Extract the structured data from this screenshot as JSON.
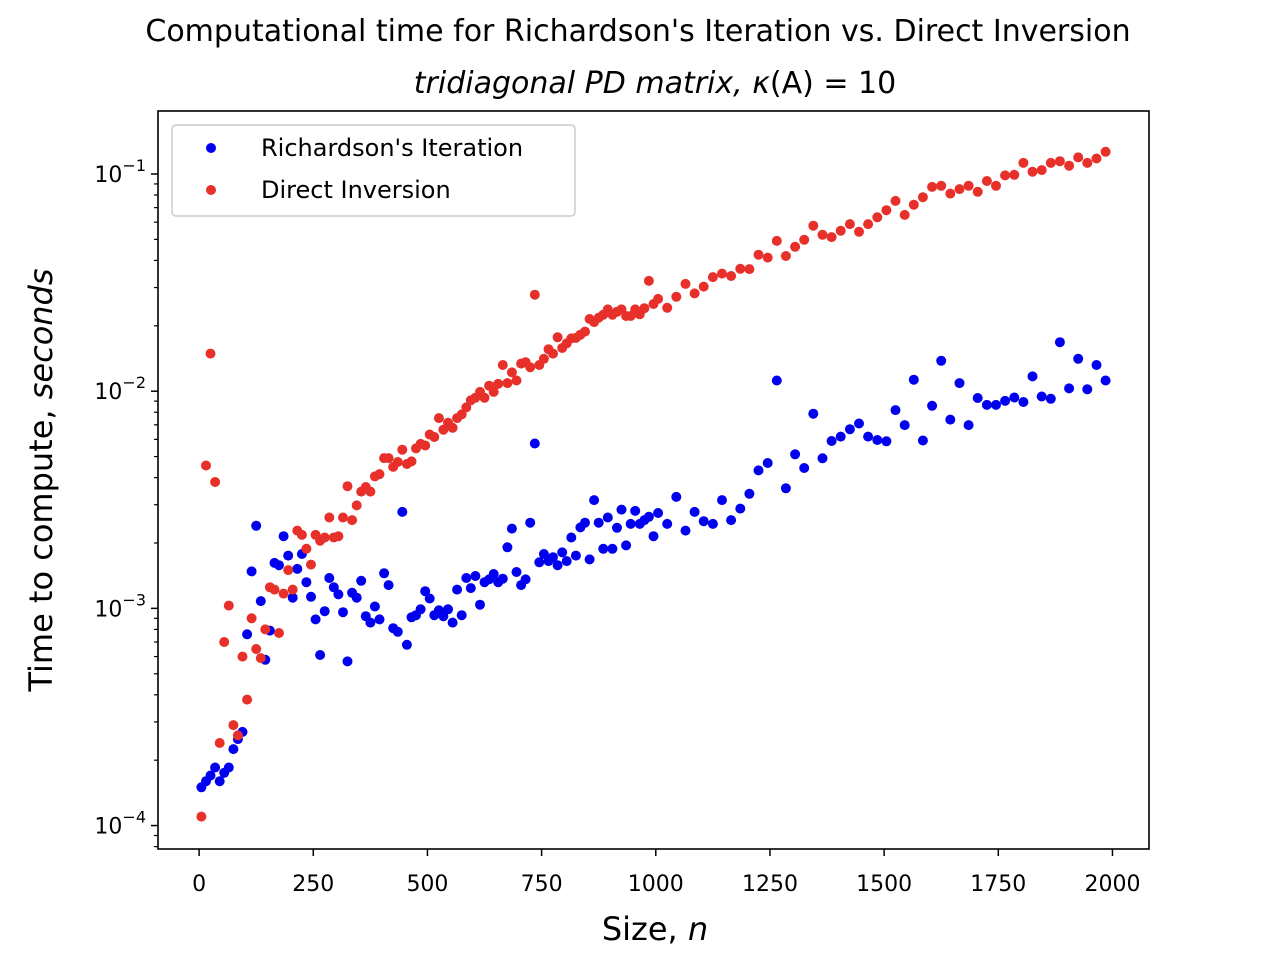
{
  "chart_data": {
    "type": "scatter",
    "title": "Computational time for Richardson's Iteration vs. Direct Inversion",
    "subtitle": "tridiagonal PD matrix, κ(A) = 10",
    "subtitle_parts": {
      "italic": "tridiagonal PD matrix, κ",
      "mid": "(A)",
      "eq": " = 10"
    },
    "xlabel": "Size, n",
    "xlabel_parts": {
      "plain": "Size, ",
      "italic": "n"
    },
    "ylabel": "Time to compute, seconds",
    "ylabel_parts": {
      "plain": "Time to compute, ",
      "italic": "seconds"
    },
    "xlim": [
      -90,
      2080
    ],
    "ylim": [
      7.8e-05,
      0.195
    ],
    "yscale": "log",
    "grid": false,
    "legend_position": "top-left",
    "x_ticks": [
      0,
      250,
      500,
      750,
      1000,
      1250,
      1500,
      1750,
      2000
    ],
    "x_tick_labels": [
      "0",
      "250",
      "500",
      "750",
      "1000",
      "1250",
      "1500",
      "1750",
      "2000"
    ],
    "y_ticks": [
      0.0001,
      0.001,
      0.01,
      0.1
    ],
    "y_tick_labels": [
      {
        "base": "10",
        "exp": "−4"
      },
      {
        "base": "10",
        "exp": "−3"
      },
      {
        "base": "10",
        "exp": "−2"
      },
      {
        "base": "10",
        "exp": "−1"
      }
    ],
    "series": [
      {
        "name": "Richardson's Iteration",
        "color": "#0000ee",
        "x": [
          5,
          15,
          25,
          35,
          45,
          55,
          65,
          75,
          85,
          95,
          105,
          115,
          125,
          135,
          145,
          155,
          165,
          175,
          185,
          195,
          205,
          215,
          225,
          235,
          245,
          255,
          265,
          275,
          285,
          295,
          305,
          315,
          325,
          335,
          345,
          355,
          365,
          375,
          385,
          395,
          405,
          415,
          425,
          435,
          445,
          455,
          465,
          475,
          485,
          495,
          505,
          515,
          525,
          535,
          545,
          555,
          565,
          575,
          585,
          595,
          605,
          615,
          625,
          635,
          645,
          655,
          665,
          675,
          685,
          695,
          705,
          715,
          725,
          735,
          745,
          755,
          765,
          775,
          785,
          795,
          805,
          815,
          825,
          835,
          845,
          855,
          865,
          875,
          885,
          895,
          905,
          915,
          925,
          935,
          945,
          955,
          965,
          975,
          985,
          995,
          1005,
          1025,
          1045,
          1065,
          1085,
          1105,
          1125,
          1145,
          1165,
          1185,
          1205,
          1225,
          1245,
          1265,
          1285,
          1305,
          1325,
          1345,
          1365,
          1385,
          1405,
          1425,
          1445,
          1465,
          1485,
          1505,
          1525,
          1545,
          1565,
          1585,
          1605,
          1625,
          1645,
          1665,
          1685,
          1705,
          1725,
          1745,
          1765,
          1785,
          1805,
          1825,
          1845,
          1865,
          1885,
          1905,
          1925,
          1945,
          1965,
          1985
        ],
        "y": [
          0.00015,
          0.00016,
          0.00017,
          0.000185,
          0.00016,
          0.000175,
          0.000185,
          0.000225,
          0.00025,
          0.00027,
          0.00076,
          0.00148,
          0.0024,
          0.00108,
          0.00058,
          0.00079,
          0.00162,
          0.00158,
          0.00215,
          0.00175,
          0.00112,
          0.00152,
          0.00178,
          0.00132,
          0.00113,
          0.00089,
          0.00061,
          0.00097,
          0.00138,
          0.00125,
          0.00116,
          0.00096,
          0.00057,
          0.00118,
          0.00112,
          0.00134,
          0.00092,
          0.00086,
          0.00102,
          0.00089,
          0.00145,
          0.00128,
          0.00081,
          0.00078,
          0.00278,
          0.00068,
          0.00091,
          0.00093,
          0.00099,
          0.0012,
          0.00111,
          0.00093,
          0.00098,
          0.00092,
          0.00099,
          0.00086,
          0.00122,
          0.00093,
          0.00138,
          0.00124,
          0.00141,
          0.00104,
          0.00132,
          0.00136,
          0.00144,
          0.00132,
          0.00137,
          0.00191,
          0.00233,
          0.00147,
          0.00128,
          0.00136,
          0.00248,
          0.00574,
          0.00163,
          0.00178,
          0.00165,
          0.00172,
          0.00158,
          0.00181,
          0.00165,
          0.00212,
          0.00175,
          0.00236,
          0.00248,
          0.00168,
          0.00315,
          0.00248,
          0.00188,
          0.00262,
          0.00188,
          0.00235,
          0.00285,
          0.00195,
          0.00245,
          0.00281,
          0.00245,
          0.00255,
          0.00264,
          0.00215,
          0.00275,
          0.00245,
          0.00326,
          0.00228,
          0.00278,
          0.00252,
          0.00245,
          0.00315,
          0.00255,
          0.00288,
          0.00337,
          0.00432,
          0.00467,
          0.0112,
          0.00357,
          0.00512,
          0.00443,
          0.00788,
          0.00491,
          0.0059,
          0.00618,
          0.00668,
          0.0071,
          0.00618,
          0.00596,
          0.00588,
          0.00818,
          0.00698,
          0.0113,
          0.00593,
          0.00856,
          0.0138,
          0.0074,
          0.0109,
          0.00698,
          0.0093,
          0.00865,
          0.00865,
          0.00902,
          0.00935,
          0.00892,
          0.0117,
          0.00945,
          0.00922,
          0.0168,
          0.0103,
          0.0141,
          0.0102,
          0.0132,
          0.0112
        ]
      },
      {
        "name": "Direct Inversion",
        "color": "#e8302a",
        "x": [
          5,
          15,
          25,
          35,
          45,
          55,
          65,
          75,
          85,
          95,
          105,
          115,
          125,
          135,
          145,
          155,
          165,
          175,
          185,
          195,
          205,
          215,
          225,
          235,
          245,
          255,
          265,
          275,
          285,
          295,
          305,
          315,
          325,
          335,
          345,
          355,
          365,
          375,
          385,
          395,
          405,
          415,
          425,
          435,
          445,
          455,
          465,
          475,
          485,
          495,
          505,
          515,
          525,
          535,
          545,
          555,
          565,
          575,
          585,
          595,
          605,
          615,
          625,
          635,
          645,
          655,
          665,
          675,
          685,
          695,
          705,
          715,
          725,
          735,
          745,
          755,
          765,
          775,
          785,
          795,
          805,
          815,
          825,
          835,
          845,
          855,
          865,
          875,
          885,
          895,
          905,
          915,
          925,
          935,
          945,
          955,
          965,
          975,
          985,
          995,
          1005,
          1025,
          1045,
          1065,
          1085,
          1105,
          1125,
          1145,
          1165,
          1185,
          1205,
          1225,
          1245,
          1265,
          1285,
          1305,
          1325,
          1345,
          1365,
          1385,
          1405,
          1425,
          1445,
          1465,
          1485,
          1505,
          1525,
          1545,
          1565,
          1585,
          1605,
          1625,
          1645,
          1665,
          1685,
          1705,
          1725,
          1745,
          1765,
          1785,
          1805,
          1825,
          1845,
          1865,
          1885,
          1905,
          1925,
          1945,
          1965,
          1985
        ],
        "y": [
          0.00011,
          0.00455,
          0.0149,
          0.00382,
          0.00024,
          0.0007,
          0.00103,
          0.00029,
          0.00026,
          0.0006,
          0.00038,
          0.0009,
          0.00065,
          0.00059,
          0.0008,
          0.00125,
          0.00122,
          0.00077,
          0.00117,
          0.0015,
          0.00122,
          0.00228,
          0.00218,
          0.00188,
          0.00159,
          0.00218,
          0.00205,
          0.00212,
          0.00262,
          0.00212,
          0.00215,
          0.00262,
          0.00365,
          0.00255,
          0.00298,
          0.00345,
          0.00362,
          0.00345,
          0.00405,
          0.00415,
          0.00492,
          0.00492,
          0.00448,
          0.00472,
          0.00538,
          0.00462,
          0.00475,
          0.00545,
          0.00572,
          0.00562,
          0.00632,
          0.00615,
          0.00752,
          0.00665,
          0.00715,
          0.00678,
          0.00752,
          0.00782,
          0.00842,
          0.00908,
          0.00932,
          0.00992,
          0.00932,
          0.0106,
          0.00992,
          0.0108,
          0.0132,
          0.0109,
          0.0122,
          0.0112,
          0.0134,
          0.0136,
          0.0129,
          0.0278,
          0.0132,
          0.0141,
          0.0156,
          0.0149,
          0.0177,
          0.0158,
          0.0166,
          0.0175,
          0.0176,
          0.0182,
          0.0188,
          0.0215,
          0.0208,
          0.0218,
          0.0225,
          0.0238,
          0.0225,
          0.0232,
          0.0238,
          0.0222,
          0.0222,
          0.0238,
          0.0226,
          0.0241,
          0.0322,
          0.0252,
          0.0266,
          0.0242,
          0.0272,
          0.0312,
          0.0282,
          0.0303,
          0.0335,
          0.0348,
          0.0339,
          0.0366,
          0.0365,
          0.0425,
          0.0412,
          0.0492,
          0.0419,
          0.0462,
          0.0498,
          0.0578,
          0.0525,
          0.0512,
          0.0548,
          0.0588,
          0.0542,
          0.0588,
          0.0632,
          0.0681,
          0.0752,
          0.0648,
          0.0722,
          0.0782,
          0.0872,
          0.0882,
          0.0812,
          0.0852,
          0.0882,
          0.0828,
          0.0928,
          0.0882,
          0.0985,
          0.0992,
          0.1125,
          0.1025,
          0.1042,
          0.1125,
          0.1145,
          0.1092,
          0.1192,
          0.1125,
          0.1178,
          0.1265
        ]
      }
    ]
  }
}
